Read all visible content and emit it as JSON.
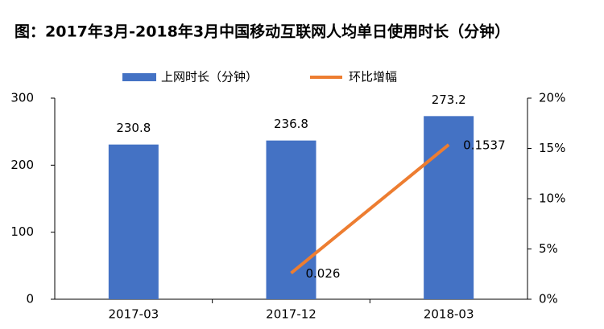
{
  "chart_data": {
    "type": "bar",
    "title": "图：2017年3月-2018年3月中国移动互联网人均单日使用时长（分钟）",
    "categories": [
      "2017-03",
      "2017-12",
      "2018-03"
    ],
    "series": [
      {
        "name": "上网时长（分钟）",
        "color": "#4472c4",
        "values": [
          230.8,
          236.8,
          273.2
        ]
      },
      {
        "name": "环比增幅",
        "color": "#ed7d31",
        "type": "line",
        "axis": "y2",
        "values": [
          null,
          2.6,
          15.37
        ],
        "value_labels": [
          null,
          "0.026",
          "0.1537"
        ]
      }
    ],
    "ylim": [
      0,
      300
    ],
    "yticks": [
      0,
      100,
      200,
      300
    ],
    "y2lim": [
      0,
      20
    ],
    "y2ticks": [
      {
        "value": 0,
        "label": "0%"
      },
      {
        "value": 5,
        "label": "5%"
      },
      {
        "value": 10,
        "label": "10%"
      },
      {
        "value": 15,
        "label": "15%"
      },
      {
        "value": 20,
        "label": "20%"
      }
    ],
    "legend": "top"
  }
}
